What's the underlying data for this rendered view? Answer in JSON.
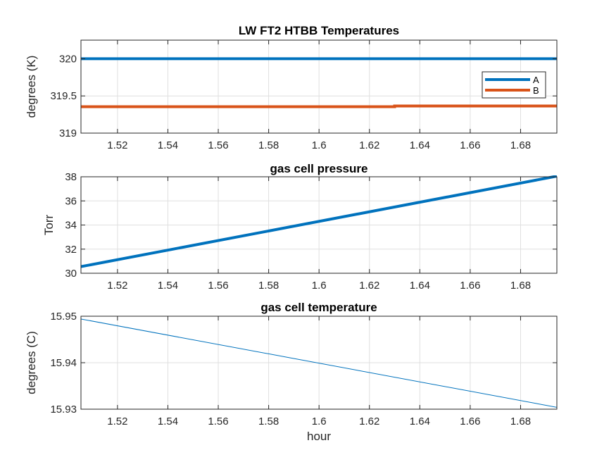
{
  "chart_data": [
    {
      "type": "line",
      "title": "LW FT2 HTBB Temperatures",
      "xlabel": "",
      "ylabel": "degrees (K)",
      "xlim": [
        1.5055,
        1.6944
      ],
      "ylim": [
        319,
        320.25
      ],
      "xticks": [
        1.52,
        1.54,
        1.56,
        1.58,
        1.6,
        1.62,
        1.64,
        1.66,
        1.68
      ],
      "xtick_labels": [
        "1.52",
        "1.54",
        "1.56",
        "1.58",
        "1.6",
        "1.62",
        "1.64",
        "1.66",
        "1.68"
      ],
      "yticks": [
        319,
        319.5,
        320
      ],
      "ytick_labels": [
        "319",
        "319.5",
        "320"
      ],
      "grid": true,
      "legend": {
        "placement": "right",
        "entries": [
          "A",
          "B"
        ]
      },
      "series": [
        {
          "name": "A",
          "color": "#0072bd",
          "line_width": "thick",
          "x": [
            1.5055,
            1.6944
          ],
          "y": [
            320,
            320
          ]
        },
        {
          "name": "B",
          "color": "#d95319",
          "line_width": "thick",
          "x": [
            1.5055,
            1.63,
            1.63,
            1.6944
          ],
          "y": [
            319.355,
            319.355,
            319.365,
            319.365
          ]
        }
      ]
    },
    {
      "type": "line",
      "title": "gas cell pressure",
      "xlabel": "",
      "ylabel": "Torr",
      "xlim": [
        1.5055,
        1.6944
      ],
      "ylim": [
        30,
        38
      ],
      "xticks": [
        1.52,
        1.54,
        1.56,
        1.58,
        1.6,
        1.62,
        1.64,
        1.66,
        1.68
      ],
      "xtick_labels": [
        "1.52",
        "1.54",
        "1.56",
        "1.58",
        "1.6",
        "1.62",
        "1.64",
        "1.66",
        "1.68"
      ],
      "yticks": [
        30,
        32,
        34,
        36,
        38
      ],
      "ytick_labels": [
        "30",
        "32",
        "34",
        "36",
        "38"
      ],
      "grid": true,
      "series": [
        {
          "color": "#0072bd",
          "line_width": "thick",
          "x": [
            1.5055,
            1.6944
          ],
          "y": [
            30.55,
            38.05
          ]
        }
      ]
    },
    {
      "type": "line",
      "title": "gas cell temperature",
      "xlabel": "hour",
      "ylabel": "degrees (C)",
      "xlim": [
        1.5055,
        1.6944
      ],
      "ylim": [
        15.93,
        15.95
      ],
      "xticks": [
        1.52,
        1.54,
        1.56,
        1.58,
        1.6,
        1.62,
        1.64,
        1.66,
        1.68
      ],
      "xtick_labels": [
        "1.52",
        "1.54",
        "1.56",
        "1.58",
        "1.6",
        "1.62",
        "1.64",
        "1.66",
        "1.68"
      ],
      "yticks": [
        15.93,
        15.94,
        15.95
      ],
      "ytick_labels": [
        "15.93",
        "15.94",
        "15.95"
      ],
      "grid": true,
      "series": [
        {
          "color": "#0072bd",
          "line_width": "thin",
          "x": [
            1.5055,
            1.6944
          ],
          "y": [
            15.9494,
            15.9304
          ]
        }
      ]
    }
  ]
}
